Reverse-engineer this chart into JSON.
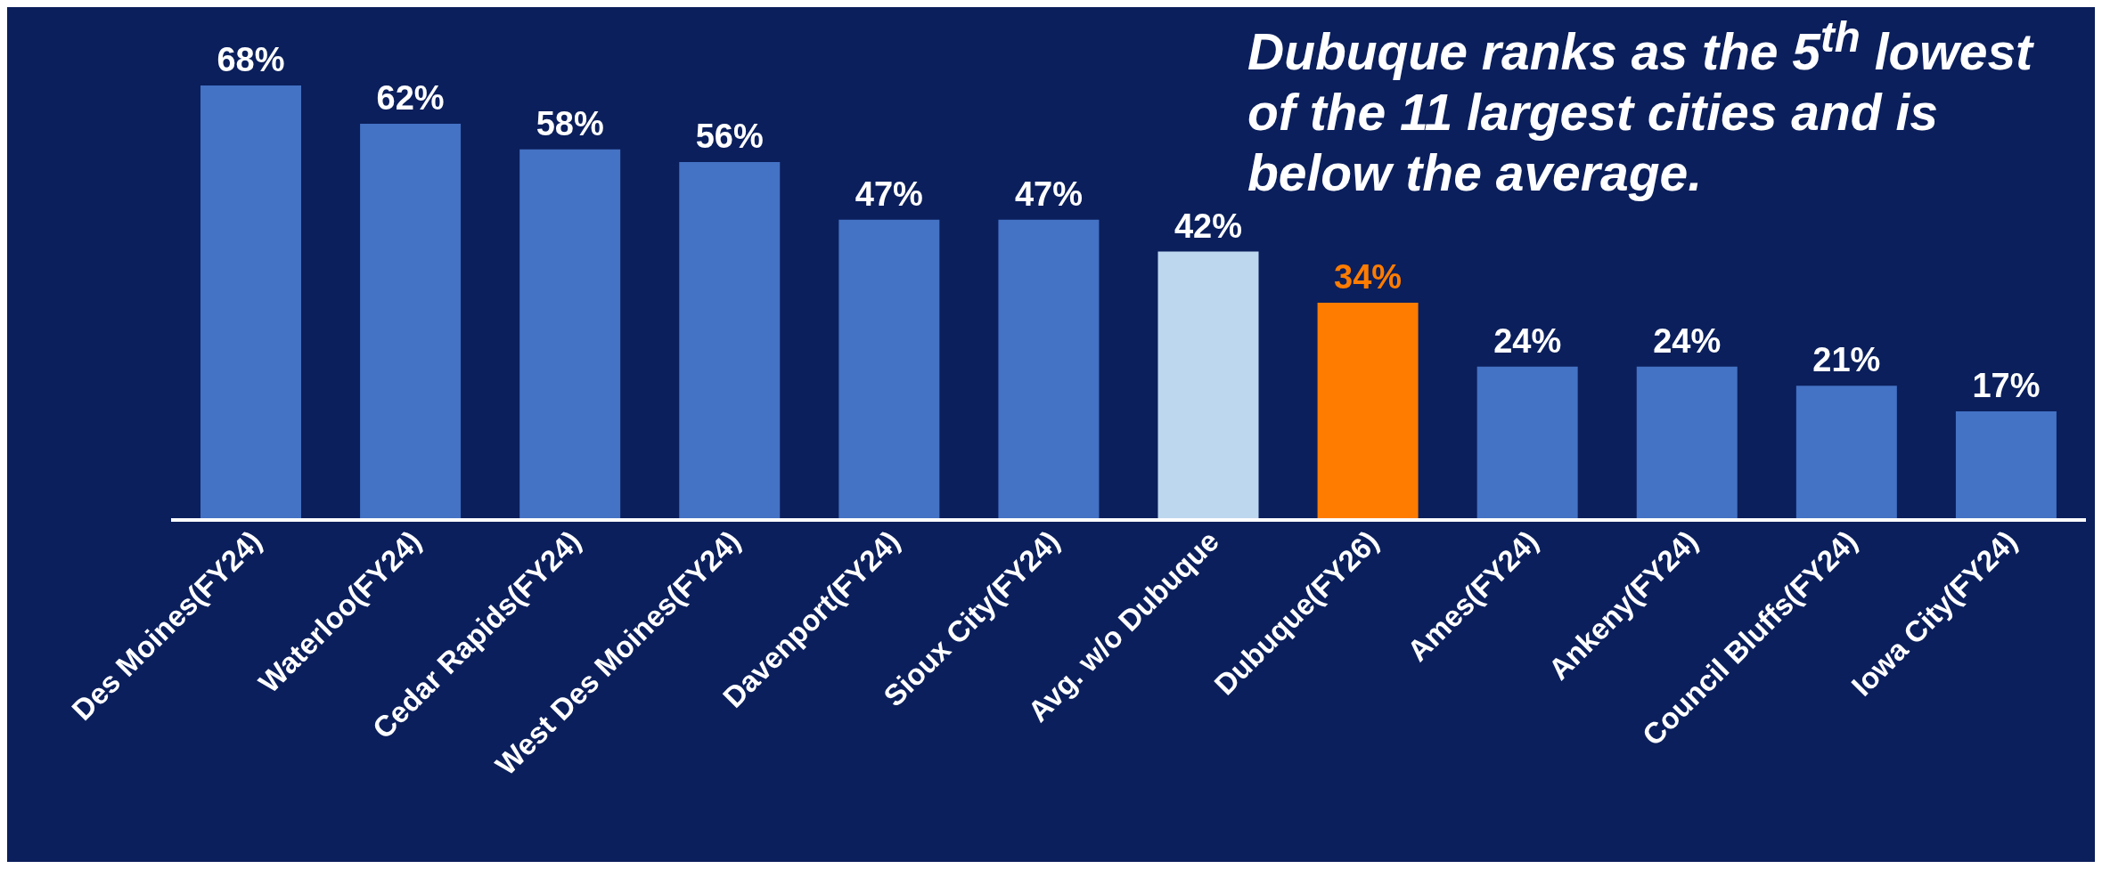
{
  "chart_data": {
    "type": "bar",
    "categories": [
      "Des Moines(FY24)",
      "Waterloo(FY24)",
      "Cedar Rapids(FY24)",
      "West Des Moines(FY24)",
      "Davenport(FY24)",
      "Sioux City(FY24)",
      "Avg. w/o Dubuque",
      "Dubuque(FY26)",
      "Ames(FY24)",
      "Ankeny(FY24)",
      "Council Bluffs(FY24)",
      "Iowa City(FY24)"
    ],
    "values": [
      68,
      62,
      58,
      56,
      47,
      47,
      42,
      34,
      24,
      24,
      21,
      17
    ],
    "colors": [
      "#4472c4",
      "#4472c4",
      "#4472c4",
      "#4472c4",
      "#4472c4",
      "#4472c4",
      "#bdd7ee",
      "#ff7c00",
      "#4472c4",
      "#4472c4",
      "#4472c4",
      "#4472c4"
    ],
    "value_labels": [
      "68%",
      "62%",
      "58%",
      "56%",
      "47%",
      "47%",
      "42%",
      "34%",
      "24%",
      "24%",
      "21%",
      "17%"
    ],
    "annotations": [
      "Dubuque ranks as the 5$^{th}$ lowest of the 11 largest cities and is below the average."
    ]
  }
}
